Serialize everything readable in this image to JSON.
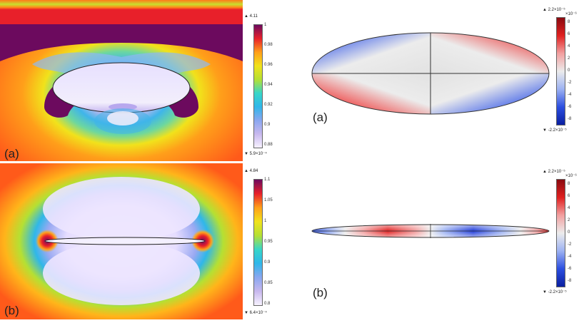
{
  "left_top": {
    "label": "(a)",
    "colorbar": {
      "max": "▲ 4.11",
      "min": "▼ 5.9×10⁻⁴",
      "ticks": [
        "1",
        "0.98",
        "0.96",
        "0.94",
        "0.92",
        "0.9",
        "0.88"
      ]
    }
  },
  "left_bottom": {
    "label": "(b)",
    "colorbar": {
      "max": "▲ 4.84",
      "min": "▼ 6.4×10⁻⁴",
      "ticks": [
        "1.1",
        "1.05",
        "1",
        "0.95",
        "0.9",
        "0.85",
        "0.8"
      ]
    }
  },
  "right_top": {
    "label": "(a)",
    "colorbar": {
      "max": "▲ 2.2×10⁻⁵",
      "min": "▼ -2.2×10⁻⁵",
      "exp": "×10⁻⁶",
      "ticks": [
        "8",
        "6",
        "4",
        "2",
        "0",
        "-2",
        "-4",
        "-6",
        "-8"
      ]
    }
  },
  "right_bottom": {
    "label": "(b)",
    "colorbar": {
      "max": "▲ 2.2×10⁻⁵",
      "min": "▼ -2.2×10⁻⁵",
      "exp": "×10⁻⁶",
      "ticks": [
        "8",
        "6",
        "4",
        "2",
        "0",
        "-2",
        "-4",
        "-6",
        "-8"
      ]
    }
  },
  "colors": {
    "rainbow": [
      "#f7f2ff",
      "#c8b8ee",
      "#8aa7f0",
      "#2fb7e9",
      "#38d6c8",
      "#b5e033",
      "#f1e21b",
      "#ff9f1a",
      "#ff5a1a",
      "#e8202a",
      "#6c0a5e"
    ],
    "diverging": [
      "#0a1fa0",
      "#2c4fe0",
      "#9db2f2",
      "#ececec",
      "#f2a0a0",
      "#e02020",
      "#8a0a10"
    ]
  }
}
